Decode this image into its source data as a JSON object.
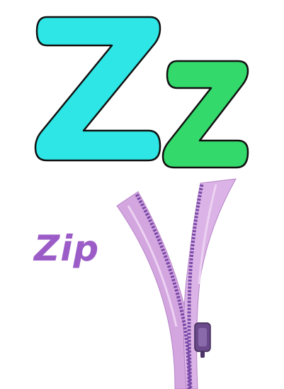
{
  "letters": {
    "upper": "Z",
    "lower": "z"
  },
  "word": "Zip",
  "colors": {
    "upper_letter": "#2ee6e6",
    "lower_letter": "#33d96b",
    "outline": "#111111",
    "word": "#9b5cc7",
    "zipper_tape": "#d4a6e0",
    "zipper_teeth": "#7a4aa8",
    "zipper_slider": "#6a4a8a"
  },
  "illustration": "zipper-image"
}
